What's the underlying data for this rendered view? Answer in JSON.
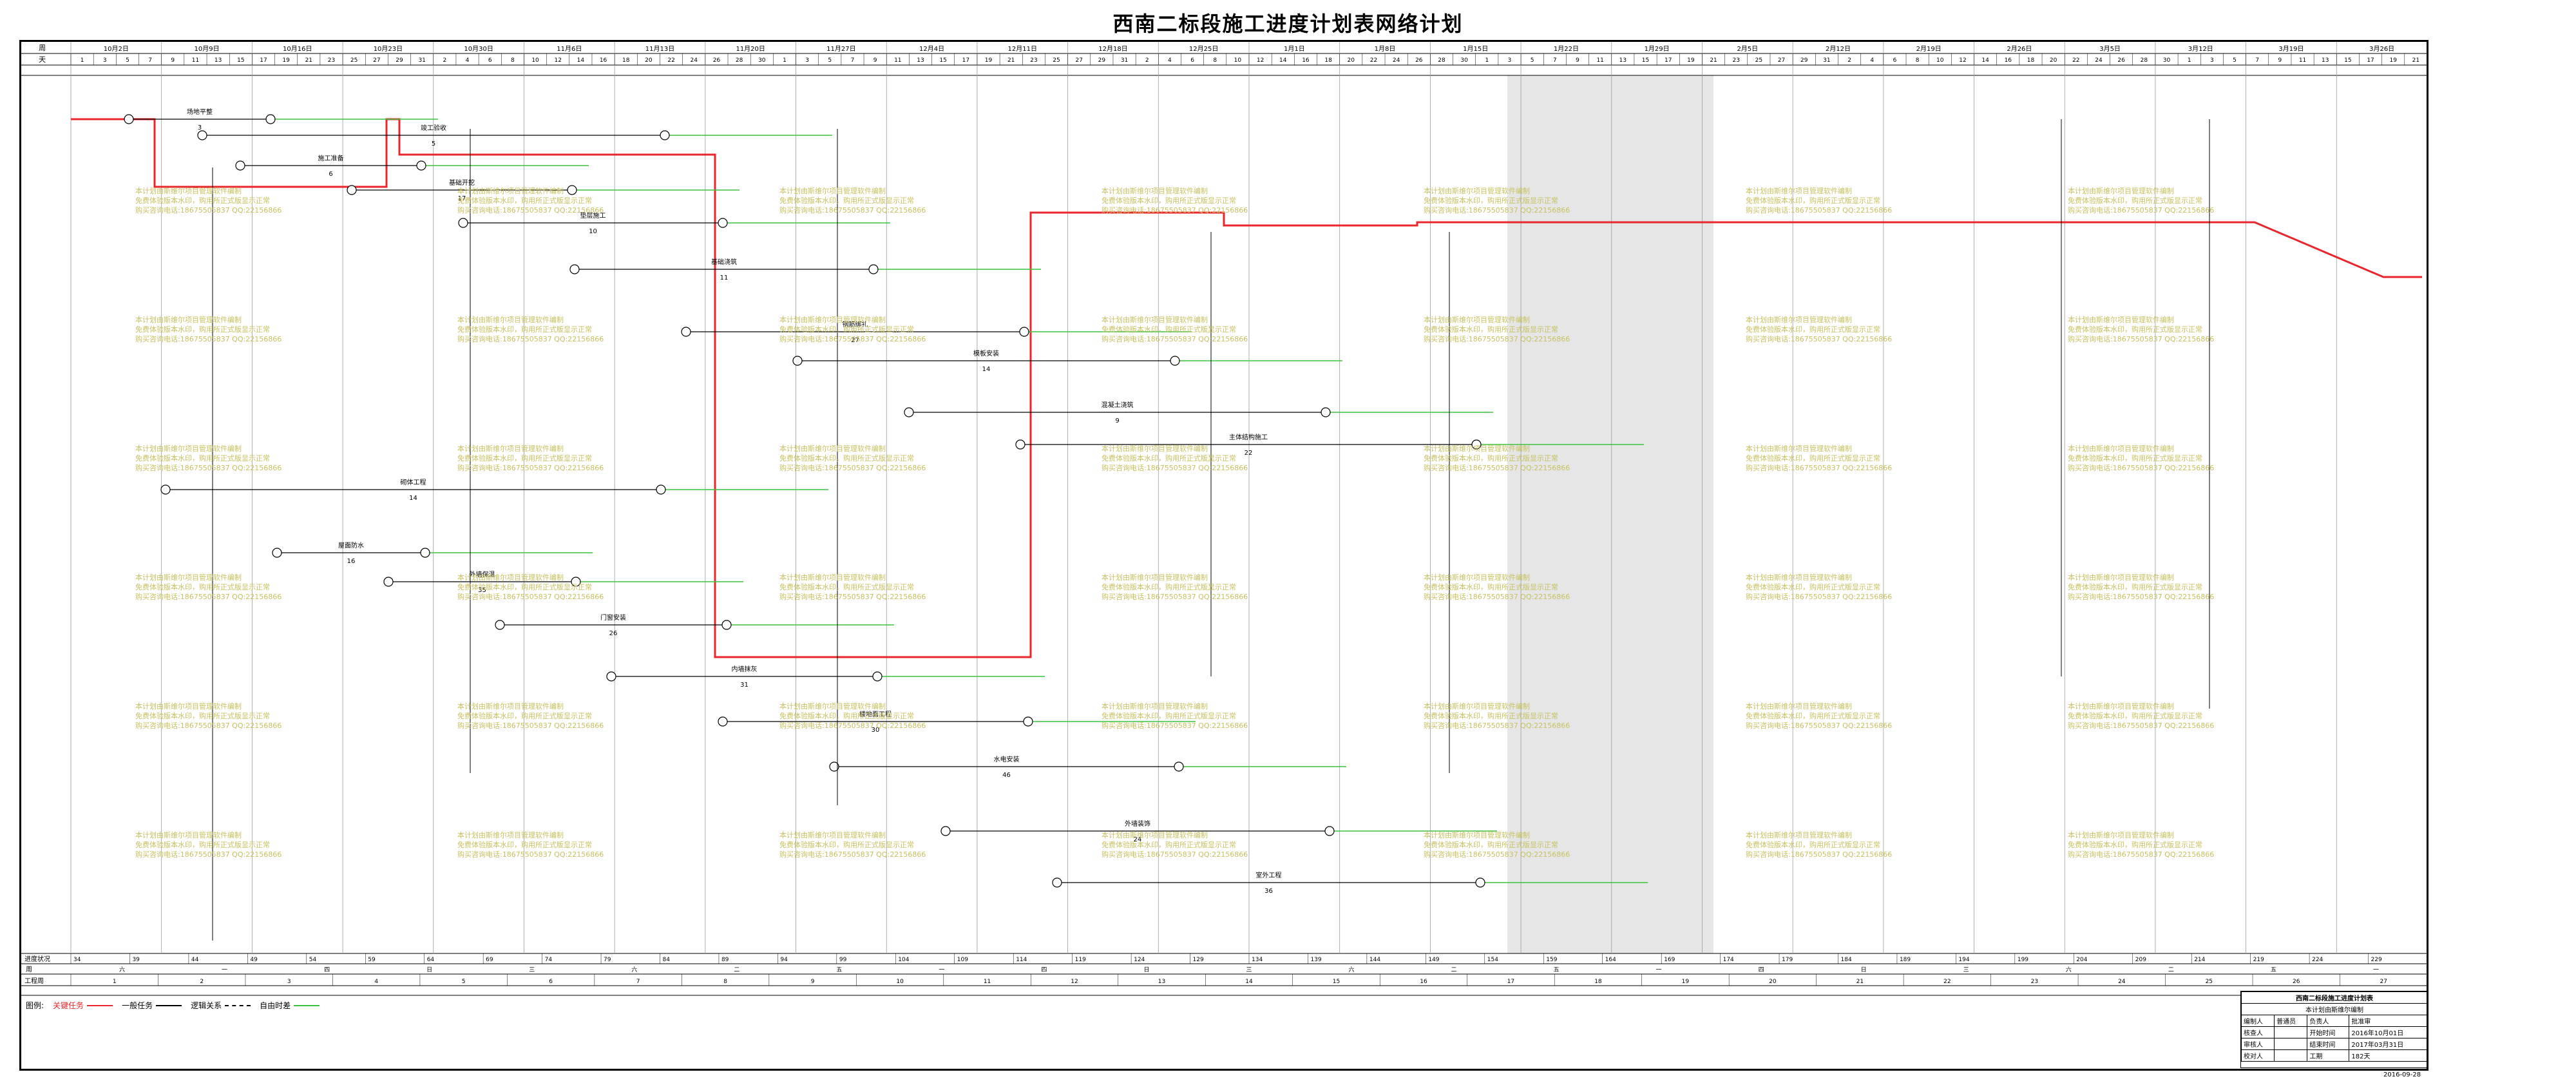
{
  "title": "西南二标段施工进度计划表网络计划",
  "header": {
    "row_week_label": "周",
    "row_day_label": "天",
    "weeks": [
      "10月2日",
      "10月9日",
      "10月16日",
      "10月23日",
      "10月30日",
      "11月6日",
      "11月13日",
      "11月20日",
      "11月27日",
      "12月4日",
      "12月11日",
      "12月18日",
      "12月25日",
      "1月1日",
      "1月8日",
      "1月15日",
      "1月22日",
      "1月29日",
      "2月5日",
      "2月12日",
      "2月19日",
      "2月26日",
      "3月5日",
      "3月12日",
      "3月19日",
      "3月26日"
    ],
    "days": [
      "1",
      "3",
      "5",
      "7",
      "9",
      "11",
      "13",
      "15",
      "17",
      "19",
      "21",
      "23",
      "25",
      "27",
      "29",
      "31",
      "2",
      "4",
      "6",
      "8",
      "10",
      "12",
      "14",
      "16",
      "18",
      "20",
      "22",
      "24",
      "26",
      "28",
      "30"
    ]
  },
  "footer": {
    "row1_label": "进度状况",
    "row2_label": "周",
    "row3_label": "工程周",
    "progress_values": [
      "34",
      "39",
      "44",
      "49",
      "54",
      "59",
      "64",
      "69",
      "74",
      "79",
      "84",
      "89",
      "94",
      "99",
      "104",
      "109",
      "114",
      "119",
      "124",
      "129",
      "134",
      "139",
      "144",
      "149",
      "154",
      "159",
      "164",
      "169",
      "174",
      "179",
      "184",
      "189",
      "194",
      "199",
      "204",
      "209",
      "214",
      "219",
      "224",
      "229"
    ],
    "weekday_values": [
      "六",
      "一",
      "四",
      "日",
      "三",
      "六",
      "二",
      "五",
      "一",
      "四",
      "日",
      "三",
      "六",
      "二",
      "五",
      "一",
      "四",
      "日",
      "三",
      "六",
      "二",
      "五",
      "一"
    ],
    "week_numbers": [
      "1",
      "2",
      "3",
      "4",
      "5",
      "6",
      "7",
      "8",
      "9",
      "10",
      "11",
      "12",
      "13",
      "14",
      "15",
      "16",
      "17",
      "18",
      "19",
      "20",
      "21",
      "22",
      "23",
      "24",
      "25",
      "26",
      "27"
    ]
  },
  "legend": {
    "label": "图例:",
    "critical": "关键任务",
    "normal": "一般任务",
    "logic": "逻辑关系",
    "free": "自由时差"
  },
  "watermark": {
    "line1": "本计划由斯维尔项目管理软件编制",
    "line2": "免费体验版本水印，购用所正式版显示正常",
    "line3": "购买咨询电话:18675505837 QQ:22156866"
  },
  "titleblock": {
    "heading": "西南二标段施工进度计划表",
    "subheading": "本计划由斯维尔编制",
    "rows": [
      [
        "编制人",
        "普通员",
        "负责人",
        "批准审"
      ],
      [
        "核查人",
        "",
        "开始时间",
        "2016年10月01日"
      ],
      [
        "审核人",
        "",
        "结束时间",
        "2017年03月31日"
      ],
      [
        "校对人",
        "",
        "工期",
        "182天"
      ]
    ],
    "date": "2016-09-28"
  },
  "tasks": [
    {
      "label": "场地平整",
      "dur": "3"
    },
    {
      "label": "施工准备",
      "dur": "6"
    },
    {
      "label": "基础开挖",
      "dur": "17"
    },
    {
      "label": "垫层施工",
      "dur": "10"
    },
    {
      "label": "基础浇筑",
      "dur": "11"
    },
    {
      "label": "钢筋绑扎",
      "dur": "27"
    },
    {
      "label": "模板安装",
      "dur": "14"
    },
    {
      "label": "混凝土浇筑",
      "dur": "9"
    },
    {
      "label": "主体结构施工",
      "dur": "22"
    },
    {
      "label": "砌体工程",
      "dur": "14"
    },
    {
      "label": "屋面防水",
      "dur": "16"
    },
    {
      "label": "外墙保温",
      "dur": "35"
    },
    {
      "label": "门窗安装",
      "dur": "26"
    },
    {
      "label": "内墙抹灰",
      "dur": "31"
    },
    {
      "label": "楼地面工程",
      "dur": "30"
    },
    {
      "label": "水电安装",
      "dur": "46"
    },
    {
      "label": "外墙装饰",
      "dur": "24"
    },
    {
      "label": "室外工程",
      "dur": "36"
    },
    {
      "label": "竣工验收",
      "dur": "5"
    }
  ],
  "colors": {
    "critical": "#e8262b",
    "normal": "#000000",
    "free": "#3cc23c",
    "grid": "#9a9a9a",
    "shade": "#e6e6e6",
    "watermark": "#c8c060"
  }
}
